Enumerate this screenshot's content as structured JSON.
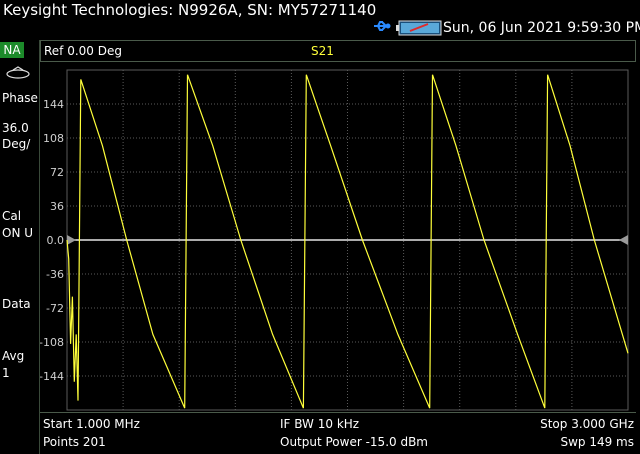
{
  "title": "Keysight Technologies: N9926A, SN: MY57271140",
  "datetime": "Sun, 06 Jun 2021  9:59:30 PM",
  "left_panel": {
    "mode": "NA",
    "format_line1": "Phase",
    "scale_line1": "36.0",
    "scale_line2": "Deg/",
    "cal_line1": "Cal",
    "cal_line2": "ON U",
    "data": "Data",
    "avg_line1": "Avg",
    "avg_line2": "1"
  },
  "header": {
    "ref": "Ref 0.00 Deg",
    "trace": "S21"
  },
  "footer": {
    "start": "Start 1.000 MHz",
    "points": "Points 201",
    "if_bw": "IF BW 10 kHz",
    "output_power": "Output Power -15.0 dBm",
    "stop": "Stop 3.000 GHz",
    "sweep": "Swp 149 ms"
  },
  "colors": {
    "trace": "#ffff3a",
    "grid": "#5a5a5a",
    "mode_badge": "#1c8a2a",
    "usb": "#2a8aff"
  },
  "icons": [
    "usb-icon",
    "battery-icon",
    "power-icon"
  ],
  "chart_data": {
    "type": "line",
    "x_range_ghz": [
      0.001,
      3.0
    ],
    "ylim": [
      -180,
      180
    ],
    "ytick_labels": [
      "144",
      "108",
      "72",
      "36",
      "0.0",
      "-36",
      "-72",
      "-108",
      "-144"
    ],
    "yticks": [
      144,
      108,
      72,
      36,
      0,
      -36,
      -72,
      -108,
      -144
    ],
    "reference_level": 0,
    "grid": true,
    "series": [
      {
        "points": [
          [
            0.001,
            0
          ],
          [
            0.01,
            -20
          ],
          [
            0.02,
            -110
          ],
          [
            0.03,
            -60
          ],
          [
            0.04,
            -150
          ],
          [
            0.05,
            -100
          ],
          [
            0.06,
            -170
          ],
          [
            0.075,
            170
          ],
          [
            0.19,
            100
          ],
          [
            0.32,
            0
          ],
          [
            0.46,
            -100
          ],
          [
            0.63,
            -178
          ],
          [
            0.645,
            175
          ],
          [
            0.78,
            100
          ],
          [
            0.93,
            0
          ],
          [
            1.1,
            -100
          ],
          [
            1.265,
            -178
          ],
          [
            1.28,
            175
          ],
          [
            1.41,
            100
          ],
          [
            1.58,
            0
          ],
          [
            1.77,
            -100
          ],
          [
            1.94,
            -178
          ],
          [
            1.955,
            175
          ],
          [
            2.08,
            100
          ],
          [
            2.23,
            0
          ],
          [
            2.41,
            -100
          ],
          [
            2.555,
            -178
          ],
          [
            2.57,
            175
          ],
          [
            2.69,
            100
          ],
          [
            2.82,
            0
          ],
          [
            3.0,
            -120
          ]
        ]
      }
    ]
  }
}
